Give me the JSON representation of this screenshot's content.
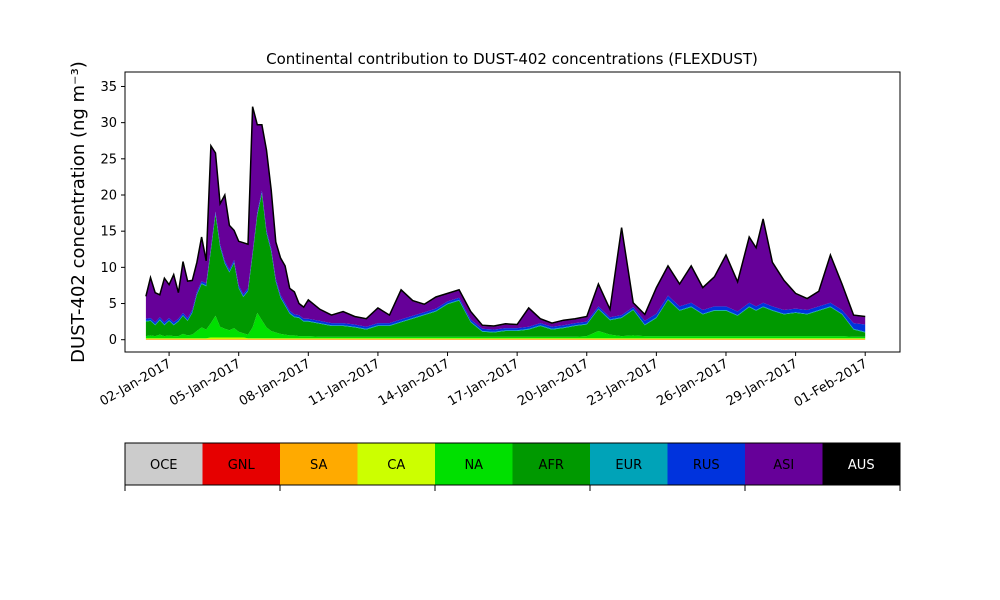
{
  "chart_data": {
    "type": "area",
    "title": "Continental contribution to DUST-402 concentrations (FLEXDUST)",
    "ylabel": "DUST-402 concentration (ng m⁻³)",
    "xlabel": "",
    "ylim": [
      -1.7,
      37
    ],
    "xlim": [
      -0.9,
      32.5
    ],
    "yticks": [
      0,
      5,
      10,
      15,
      20,
      25,
      30,
      35
    ],
    "xticks": [
      {
        "x": 1,
        "label": "02-Jan-2017"
      },
      {
        "x": 4,
        "label": "05-Jan-2017"
      },
      {
        "x": 7,
        "label": "08-Jan-2017"
      },
      {
        "x": 10,
        "label": "11-Jan-2017"
      },
      {
        "x": 13,
        "label": "14-Jan-2017"
      },
      {
        "x": 16,
        "label": "17-Jan-2017"
      },
      {
        "x": 19,
        "label": "20-Jan-2017"
      },
      {
        "x": 22,
        "label": "23-Jan-2017"
      },
      {
        "x": 25,
        "label": "26-Jan-2017"
      },
      {
        "x": 28,
        "label": "29-Jan-2017"
      },
      {
        "x": 31,
        "label": "01-Feb-2017"
      }
    ],
    "grid": false,
    "x": [
      0,
      0.2,
      0.4,
      0.6,
      0.8,
      1.0,
      1.2,
      1.4,
      1.6,
      1.8,
      2.0,
      2.2,
      2.4,
      2.6,
      2.8,
      3.0,
      3.2,
      3.4,
      3.6,
      3.8,
      4.0,
      4.2,
      4.4,
      4.6,
      4.8,
      5.0,
      5.2,
      5.4,
      5.6,
      5.8,
      6.0,
      6.2,
      6.4,
      6.6,
      6.8,
      7.0,
      7.5,
      8.0,
      8.5,
      9.0,
      9.5,
      10.0,
      10.5,
      11.0,
      11.5,
      12.0,
      12.5,
      13.0,
      13.5,
      14.0,
      14.5,
      15.0,
      15.5,
      16.0,
      16.5,
      17.0,
      17.5,
      18.0,
      18.5,
      19.0,
      19.5,
      20.0,
      20.5,
      21.0,
      21.5,
      22.0,
      22.5,
      23.0,
      23.5,
      24.0,
      24.5,
      25.0,
      25.5,
      26.0,
      26.3,
      26.6,
      27.0,
      27.5,
      28.0,
      28.5,
      29.0,
      29.5,
      30.0,
      30.5,
      31.0
    ],
    "series": [
      {
        "name": "OCE",
        "values": [
          0,
          0,
          0,
          0,
          0,
          0,
          0,
          0,
          0,
          0,
          0,
          0,
          0,
          0,
          0,
          0,
          0,
          0,
          0,
          0,
          0,
          0,
          0,
          0,
          0,
          0,
          0,
          0,
          0,
          0,
          0,
          0,
          0,
          0,
          0,
          0,
          0,
          0,
          0,
          0,
          0,
          0,
          0,
          0,
          0,
          0,
          0,
          0,
          0,
          0,
          0,
          0,
          0,
          0,
          0,
          0,
          0,
          0,
          0,
          0,
          0,
          0,
          0,
          0,
          0,
          0,
          0,
          0,
          0,
          0,
          0,
          0,
          0,
          0,
          0,
          0,
          0,
          0,
          0,
          0,
          0,
          0,
          0,
          0,
          0
        ]
      },
      {
        "name": "GNL",
        "values": [
          0,
          0,
          0,
          0,
          0,
          0,
          0,
          0,
          0,
          0,
          0,
          0,
          0,
          0,
          0,
          0,
          0,
          0,
          0,
          0,
          0,
          0,
          0,
          0,
          0,
          0,
          0,
          0,
          0,
          0,
          0,
          0,
          0,
          0,
          0,
          0,
          0,
          0,
          0,
          0,
          0,
          0,
          0,
          0,
          0,
          0,
          0,
          0,
          0,
          0,
          0,
          0,
          0,
          0,
          0,
          0,
          0,
          0,
          0,
          0,
          0,
          0,
          0,
          0,
          0,
          0,
          0,
          0,
          0,
          0,
          0,
          0,
          0,
          0,
          0,
          0,
          0,
          0,
          0,
          0,
          0,
          0,
          0,
          0,
          0
        ]
      },
      {
        "name": "SA",
        "values": [
          0.1,
          0.1,
          0.1,
          0.1,
          0.1,
          0.1,
          0.1,
          0.1,
          0.1,
          0.1,
          0.1,
          0.1,
          0.1,
          0.1,
          0.1,
          0.1,
          0.1,
          0.1,
          0.1,
          0.1,
          0.1,
          0.1,
          0.1,
          0.1,
          0.1,
          0.1,
          0.1,
          0.1,
          0.1,
          0.1,
          0.1,
          0.1,
          0.1,
          0.1,
          0.1,
          0.1,
          0.1,
          0.1,
          0.1,
          0.1,
          0.1,
          0.1,
          0.1,
          0.1,
          0.1,
          0.1,
          0.1,
          0.1,
          0.1,
          0.1,
          0.1,
          0.1,
          0.1,
          0.1,
          0.1,
          0.1,
          0.1,
          0.1,
          0.1,
          0.1,
          0.1,
          0.1,
          0.1,
          0.1,
          0.1,
          0.1,
          0.1,
          0.1,
          0.1,
          0.1,
          0.1,
          0.1,
          0.1,
          0.1,
          0.1,
          0.1,
          0.1,
          0.1,
          0.1,
          0.1,
          0.1,
          0.1,
          0.1,
          0.1,
          0.1
        ]
      },
      {
        "name": "CA",
        "values": [
          0.1,
          0.1,
          0.1,
          0.1,
          0.1,
          0.1,
          0.1,
          0.1,
          0.1,
          0.1,
          0.1,
          0.1,
          0.1,
          0.1,
          0.2,
          0.2,
          0.2,
          0.2,
          0.2,
          0.2,
          0.2,
          0.2,
          0.1,
          0.1,
          0.1,
          0.1,
          0.1,
          0.1,
          0.1,
          0.1,
          0.1,
          0.1,
          0.1,
          0.1,
          0.1,
          0.1,
          0.1,
          0.1,
          0.1,
          0.1,
          0.1,
          0.1,
          0.1,
          0.1,
          0.1,
          0.1,
          0.1,
          0.1,
          0.1,
          0.1,
          0.1,
          0.1,
          0.1,
          0.1,
          0.1,
          0.1,
          0.1,
          0.1,
          0.1,
          0.1,
          0.1,
          0.1,
          0.1,
          0.1,
          0.1,
          0.1,
          0.1,
          0.1,
          0.1,
          0.1,
          0.1,
          0.1,
          0.1,
          0.1,
          0.1,
          0.1,
          0.1,
          0.1,
          0.1,
          0.1,
          0.1,
          0.1,
          0.1,
          0.1,
          0.1
        ]
      },
      {
        "name": "NA",
        "values": [
          0.3,
          0.4,
          0.3,
          0.5,
          0.3,
          0.4,
          0.3,
          0.3,
          0.6,
          0.4,
          0.5,
          1.0,
          1.5,
          1.2,
          2.0,
          3.0,
          1.5,
          1.2,
          1.0,
          1.3,
          0.8,
          0.6,
          0.5,
          1.5,
          3.5,
          2.5,
          1.5,
          1.0,
          0.8,
          0.6,
          0.5,
          0.4,
          0.4,
          0.3,
          0.3,
          0.3,
          0.2,
          0.2,
          0.2,
          0.2,
          0.2,
          0.2,
          0.2,
          0.2,
          0.2,
          0.2,
          0.2,
          0.2,
          0.2,
          0.2,
          0.2,
          0.2,
          0.2,
          0.2,
          0.2,
          0.2,
          0.2,
          0.2,
          0.2,
          0.3,
          1.0,
          0.5,
          0.3,
          0.4,
          0.3,
          0.3,
          0.3,
          0.3,
          0.3,
          0.3,
          0.3,
          0.3,
          0.3,
          0.3,
          0.3,
          0.3,
          0.3,
          0.3,
          0.3,
          0.3,
          0.3,
          0.3,
          0.3,
          0.2,
          0.2
        ]
      },
      {
        "name": "AFR",
        "values": [
          2.0,
          2.0,
          1.5,
          2.0,
          1.5,
          2.0,
          1.5,
          2.0,
          2.5,
          2.0,
          3.0,
          5.0,
          6.0,
          6.0,
          10.0,
          14.0,
          11.0,
          9.0,
          8.0,
          9.0,
          6.0,
          5.0,
          6.0,
          10.0,
          13.5,
          17.5,
          13.0,
          11.0,
          7.0,
          5.0,
          4.0,
          3.0,
          2.5,
          2.5,
          2.0,
          2.0,
          1.8,
          1.5,
          1.5,
          1.3,
          1.0,
          1.5,
          1.5,
          2.0,
          2.5,
          3.0,
          3.5,
          4.5,
          5.0,
          2.0,
          0.7,
          0.6,
          0.8,
          0.8,
          1.0,
          1.5,
          1.0,
          1.2,
          1.5,
          1.6,
          3.0,
          2.0,
          2.5,
          3.5,
          1.5,
          2.5,
          5.0,
          3.5,
          4.0,
          3.0,
          3.5,
          3.5,
          2.8,
          4.0,
          3.5,
          4.0,
          3.5,
          3.0,
          3.2,
          3.0,
          3.5,
          4.0,
          3.0,
          1.0,
          0.6
        ]
      },
      {
        "name": "EUR",
        "values": [
          0.1,
          0.1,
          0.1,
          0.1,
          0.1,
          0.1,
          0.1,
          0.1,
          0.1,
          0.1,
          0.1,
          0.1,
          0.1,
          0.1,
          0.1,
          0.1,
          0.1,
          0.1,
          0.1,
          0.1,
          0.1,
          0.1,
          0.1,
          0.1,
          0.1,
          0.1,
          0.1,
          0.1,
          0.1,
          0.1,
          0.1,
          0.1,
          0.1,
          0.1,
          0.1,
          0.1,
          0.1,
          0.1,
          0.1,
          0.1,
          0.1,
          0.1,
          0.1,
          0.1,
          0.1,
          0.1,
          0.1,
          0.1,
          0.1,
          0.1,
          0.1,
          0.1,
          0.1,
          0.1,
          0.1,
          0.1,
          0.1,
          0.1,
          0.1,
          0.1,
          0.1,
          0.1,
          0.1,
          0.1,
          0.1,
          0.1,
          0.1,
          0.1,
          0.1,
          0.1,
          0.1,
          0.1,
          0.1,
          0.1,
          0.1,
          0.1,
          0.1,
          0.1,
          0.1,
          0.1,
          0.1,
          0.1,
          0.1,
          0.1,
          0.1
        ]
      },
      {
        "name": "RUS",
        "values": [
          0.3,
          0.3,
          0.3,
          0.3,
          0.3,
          0.3,
          0.3,
          0.3,
          0.3,
          0.3,
          0.3,
          0.3,
          0.3,
          0.3,
          0.3,
          0.3,
          0.3,
          0.3,
          0.3,
          0.3,
          0.3,
          0.3,
          0.3,
          0.3,
          0.3,
          0.3,
          0.3,
          0.3,
          0.3,
          0.3,
          0.3,
          0.3,
          0.3,
          0.3,
          0.3,
          0.3,
          0.3,
          0.3,
          0.3,
          0.3,
          0.3,
          0.3,
          0.3,
          0.3,
          0.3,
          0.3,
          0.3,
          0.3,
          0.3,
          0.3,
          0.3,
          0.3,
          0.3,
          0.3,
          0.3,
          0.3,
          0.3,
          0.3,
          0.3,
          0.3,
          0.3,
          0.3,
          0.3,
          0.3,
          0.5,
          0.5,
          0.5,
          0.5,
          0.5,
          0.5,
          0.5,
          0.5,
          0.5,
          0.5,
          0.5,
          0.5,
          0.5,
          0.5,
          0.5,
          0.5,
          0.5,
          0.5,
          0.5,
          0.8,
          1.0
        ]
      },
      {
        "name": "ASI",
        "values": [
          3.0,
          5.5,
          4.0,
          3.0,
          6.0,
          4.5,
          6.5,
          3.5,
          7.0,
          5.0,
          4.0,
          4.0,
          6.0,
          3.0,
          14.0,
          8.0,
          5.5,
          9.0,
          6.0,
          4.0,
          6.0,
          7.0,
          6.0,
          20.0,
          12.0,
          9.0,
          11.0,
          8.0,
          5.0,
          5.0,
          5.0,
          3.0,
          3.0,
          1.5,
          1.5,
          2.5,
          1.5,
          1.0,
          1.5,
          1.0,
          1.0,
          2.0,
          1.0,
          4.0,
          2.0,
          1.0,
          1.5,
          1.0,
          1.0,
          1.0,
          0.4,
          0.4,
          0.5,
          0.4,
          2.5,
          0.5,
          0.4,
          0.6,
          0.5,
          0.6,
          3.0,
          1.0,
          12.0,
          0.5,
          0.8,
          3.5,
          4.0,
          3.0,
          5.0,
          3.0,
          4.0,
          7.0,
          4.0,
          9.0,
          8.0,
          11.5,
          6.0,
          4.0,
          2.0,
          1.5,
          2.0,
          6.5,
          3.5,
          1.0,
          1.0
        ]
      },
      {
        "name": "AUS",
        "values": [
          0.1,
          0.1,
          0.1,
          0.1,
          0.1,
          0.1,
          0.1,
          0.1,
          0.1,
          0.1,
          0.1,
          0.1,
          0.1,
          0.1,
          0.1,
          0.1,
          0.1,
          0.1,
          0.1,
          0.1,
          0.1,
          0.1,
          0.1,
          0.1,
          0.1,
          0.1,
          0.1,
          0.1,
          0.1,
          0.1,
          0.1,
          0.1,
          0.1,
          0.1,
          0.1,
          0.1,
          0.1,
          0.1,
          0.1,
          0.1,
          0.1,
          0.1,
          0.1,
          0.1,
          0.1,
          0.1,
          0.1,
          0.1,
          0.1,
          0.1,
          0.1,
          0.1,
          0.1,
          0.1,
          0.1,
          0.1,
          0.1,
          0.1,
          0.1,
          0.1,
          0.1,
          0.1,
          0.1,
          0.1,
          0.1,
          0.1,
          0.1,
          0.1,
          0.1,
          0.1,
          0.1,
          0.1,
          0.1,
          0.1,
          0.1,
          0.1,
          0.1,
          0.1,
          0.1,
          0.1,
          0.1,
          0.1,
          0.1,
          0.1,
          0.1
        ]
      }
    ],
    "legend": {
      "placement": "bottom",
      "entries": [
        {
          "name": "OCE",
          "color": "#cccccc",
          "text_color": "#000000"
        },
        {
          "name": "GNL",
          "color": "#e60000",
          "text_color": "#000000"
        },
        {
          "name": "SA",
          "color": "#ffaa00",
          "text_color": "#000000"
        },
        {
          "name": "CA",
          "color": "#ccff00",
          "text_color": "#000000"
        },
        {
          "name": "NA",
          "color": "#00e000",
          "text_color": "#000000"
        },
        {
          "name": "AFR",
          "color": "#009900",
          "text_color": "#000000"
        },
        {
          "name": "EUR",
          "color": "#00a3b8",
          "text_color": "#000000"
        },
        {
          "name": "RUS",
          "color": "#0033dd",
          "text_color": "#000000"
        },
        {
          "name": "ASI",
          "color": "#660099",
          "text_color": "#000000"
        },
        {
          "name": "AUS",
          "color": "#000000",
          "text_color": "#ffffff"
        }
      ]
    },
    "total_line_color": "#000000"
  }
}
